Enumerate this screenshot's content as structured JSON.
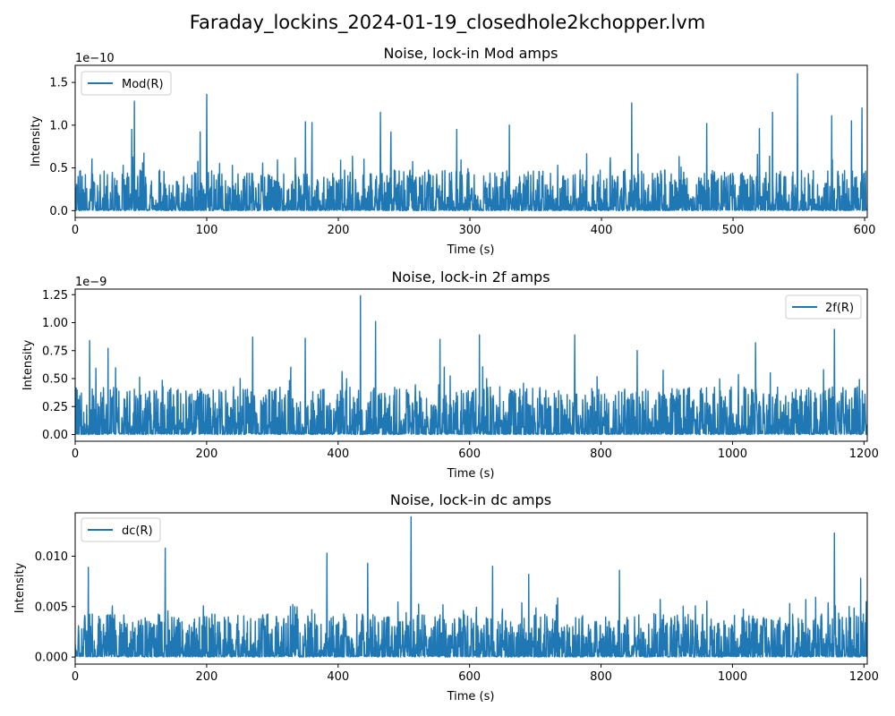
{
  "figure_title": "Faraday_lockins_2024-01-19_closedhole2kchopper.lvm",
  "colors": {
    "series": "#1f77b4",
    "axes": "#000000",
    "legend_border": "#cccccc"
  },
  "chart_data": [
    {
      "type": "line",
      "title": "Noise, lock-in Mod amps",
      "xlabel": "Time (s)",
      "ylabel": "Intensity",
      "offset_text": "1e−10",
      "xlim": [
        0,
        602
      ],
      "ylim": [
        -0.08,
        1.7
      ],
      "xticks": [
        0,
        100,
        200,
        300,
        400,
        500,
        600
      ],
      "xtick_labels": [
        "0",
        "100",
        "200",
        "300",
        "400",
        "500",
        "600"
      ],
      "yticks": [
        0.0,
        0.5,
        1.0,
        1.5
      ],
      "ytick_labels": [
        "0.0",
        "0.5",
        "1.0",
        "1.5"
      ],
      "legend": "top-left",
      "grid": false,
      "series": [
        {
          "name": "Mod(R)",
          "noise_floor": 0.0,
          "typical_peak": 0.5,
          "max_value": 1.6,
          "sample_rate_per_s": 4,
          "spikes": [
            {
              "x": 45,
              "y": 1.28
            },
            {
              "x": 43,
              "y": 0.95
            },
            {
              "x": 100,
              "y": 1.36
            },
            {
              "x": 95,
              "y": 0.92
            },
            {
              "x": 175,
              "y": 1.04
            },
            {
              "x": 180,
              "y": 1.03
            },
            {
              "x": 232,
              "y": 1.15
            },
            {
              "x": 240,
              "y": 0.92
            },
            {
              "x": 290,
              "y": 0.95
            },
            {
              "x": 330,
              "y": 1.0
            },
            {
              "x": 423,
              "y": 1.26
            },
            {
              "x": 480,
              "y": 1.02
            },
            {
              "x": 520,
              "y": 0.96
            },
            {
              "x": 530,
              "y": 1.15
            },
            {
              "x": 549,
              "y": 1.6
            },
            {
              "x": 598,
              "y": 1.2
            },
            {
              "x": 575,
              "y": 1.11
            },
            {
              "x": 590,
              "y": 1.05
            }
          ]
        }
      ]
    },
    {
      "type": "line",
      "title": "Noise, lock-in 2f amps",
      "xlabel": "Time (s)",
      "ylabel": "Intensity",
      "offset_text": "1e−9",
      "xlim": [
        0,
        1205
      ],
      "ylim": [
        -0.06,
        1.3
      ],
      "xticks": [
        0,
        200,
        400,
        600,
        800,
        1000,
        1200
      ],
      "xtick_labels": [
        "0",
        "200",
        "400",
        "600",
        "800",
        "1000",
        "1200"
      ],
      "yticks": [
        0.0,
        0.25,
        0.5,
        0.75,
        1.0,
        1.25
      ],
      "ytick_labels": [
        "0.00",
        "0.25",
        "0.50",
        "0.75",
        "1.00",
        "1.25"
      ],
      "legend": "top-right",
      "grid": false,
      "series": [
        {
          "name": "2f(R)",
          "noise_floor": 0.0,
          "typical_peak": 0.45,
          "max_value": 1.24,
          "sample_rate_per_s": 2,
          "spikes": [
            {
              "x": 22,
              "y": 0.84
            },
            {
              "x": 50,
              "y": 0.77
            },
            {
              "x": 270,
              "y": 0.87
            },
            {
              "x": 350,
              "y": 0.86
            },
            {
              "x": 434,
              "y": 1.24
            },
            {
              "x": 457,
              "y": 1.01
            },
            {
              "x": 555,
              "y": 0.85
            },
            {
              "x": 615,
              "y": 0.89
            },
            {
              "x": 760,
              "y": 0.89
            },
            {
              "x": 855,
              "y": 0.75
            },
            {
              "x": 1035,
              "y": 0.82
            },
            {
              "x": 1155,
              "y": 0.94
            }
          ]
        }
      ]
    },
    {
      "type": "line",
      "title": "Noise, lock-in dc amps",
      "xlabel": "Time (s)",
      "ylabel": "Intensity",
      "offset_text": "",
      "xlim": [
        0,
        1205
      ],
      "ylim": [
        -0.0007,
        0.0143
      ],
      "xticks": [
        0,
        200,
        400,
        600,
        800,
        1000,
        1200
      ],
      "xtick_labels": [
        "0",
        "200",
        "400",
        "600",
        "800",
        "1000",
        "1200"
      ],
      "yticks": [
        0.0,
        0.005,
        0.01
      ],
      "ytick_labels": [
        "0.000",
        "0.005",
        "0.010"
      ],
      "legend": "top-left",
      "grid": false,
      "series": [
        {
          "name": "dc(R)",
          "noise_floor": 0.0,
          "typical_peak": 0.0045,
          "max_value": 0.0139,
          "sample_rate_per_s": 2,
          "spikes": [
            {
              "x": 20,
              "y": 0.0089
            },
            {
              "x": 137,
              "y": 0.0108
            },
            {
              "x": 383,
              "y": 0.0103
            },
            {
              "x": 445,
              "y": 0.0093
            },
            {
              "x": 511,
              "y": 0.0139
            },
            {
              "x": 635,
              "y": 0.009
            },
            {
              "x": 690,
              "y": 0.0082
            },
            {
              "x": 828,
              "y": 0.0086
            },
            {
              "x": 1155,
              "y": 0.0123
            },
            {
              "x": 1195,
              "y": 0.0078
            }
          ]
        }
      ]
    }
  ]
}
